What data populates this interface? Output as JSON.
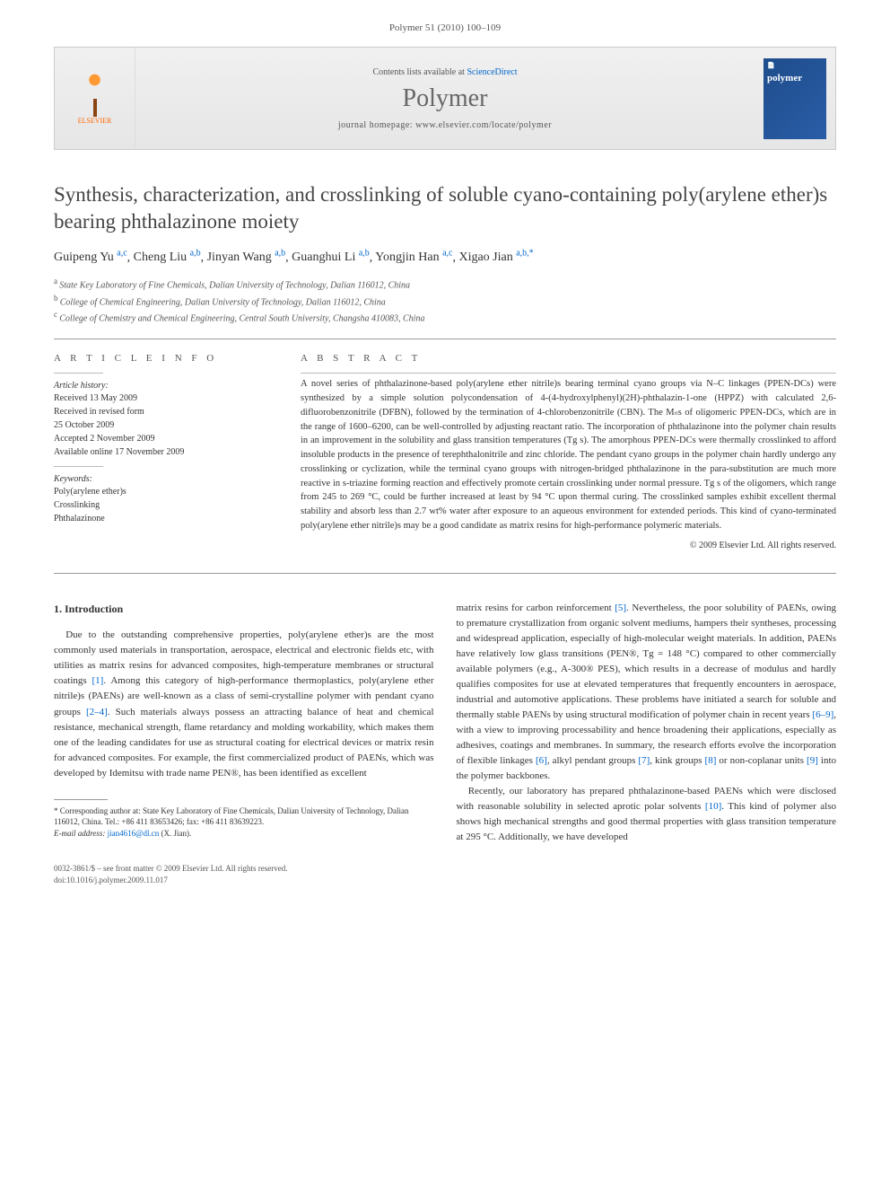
{
  "header": {
    "citation": "Polymer 51 (2010) 100–109"
  },
  "banner": {
    "publisher_name": "ELSEVIER",
    "contents_prefix": "Contents lists available at ",
    "contents_link": "ScienceDirect",
    "journal_name": "Polymer",
    "homepage_prefix": "journal homepage: ",
    "homepage_url": "www.elsevier.com/locate/polymer",
    "cover_badge": "📄",
    "cover_title": "polymer"
  },
  "article": {
    "title": "Synthesis, characterization, and crosslinking of soluble cyano-containing poly(arylene ether)s bearing phthalazinone moiety",
    "authors_html": "Guipeng Yu",
    "authors": [
      {
        "name": "Guipeng Yu",
        "sup": "a,c"
      },
      {
        "name": "Cheng Liu",
        "sup": "a,b"
      },
      {
        "name": "Jinyan Wang",
        "sup": "a,b"
      },
      {
        "name": "Guanghui Li",
        "sup": "a,b"
      },
      {
        "name": "Yongjin Han",
        "sup": "a,c"
      },
      {
        "name": "Xigao Jian",
        "sup": "a,b,*"
      }
    ],
    "affiliations": [
      {
        "sup": "a",
        "text": "State Key Laboratory of Fine Chemicals, Dalian University of Technology, Dalian 116012, China"
      },
      {
        "sup": "b",
        "text": "College of Chemical Engineering, Dalian University of Technology, Dalian 116012, China"
      },
      {
        "sup": "c",
        "text": "College of Chemistry and Chemical Engineering, Central South University, Changsha 410083, China"
      }
    ]
  },
  "info": {
    "heading": "A R T I C L E   I N F O",
    "history_label": "Article history:",
    "received": "Received 13 May 2009",
    "revised1": "Received in revised form",
    "revised2": "25 October 2009",
    "accepted": "Accepted 2 November 2009",
    "online": "Available online 17 November 2009",
    "keywords_label": "Keywords:",
    "kw1": "Poly(arylene ether)s",
    "kw2": "Crosslinking",
    "kw3": "Phthalazinone"
  },
  "abstract": {
    "heading": "A B S T R A C T",
    "text": "A novel series of phthalazinone-based poly(arylene ether nitrile)s bearing terminal cyano groups via N–C linkages (PPEN-DCs) were synthesized by a simple solution polycondensation of 4-(4-hydroxylphenyl)(2H)-phthalazin-1-one (HPPZ) with calculated 2,6-difluorobenzonitrile (DFBN), followed by the termination of 4-chlorobenzonitrile (CBN). The Mₙs of oligomeric PPEN-DCs, which are in the range of 1600–6200, can be well-controlled by adjusting reactant ratio. The incorporation of phthalazinone into the polymer chain results in an improvement in the solubility and glass transition temperatures (Tg s). The amorphous PPEN-DCs were thermally crosslinked to afford insoluble products in the presence of terephthalonitrile and zinc chloride. The pendant cyano groups in the polymer chain hardly undergo any crosslinking or cyclization, while the terminal cyano groups with nitrogen-bridged phthalazinone in the para-substitution are much more reactive in s-triazine forming reaction and effectively promote certain crosslinking under normal pressure. Tg s of the oligomers, which range from 245 to 269 °C, could be further increased at least by 94 °C upon thermal curing. The crosslinked samples exhibit excellent thermal stability and absorb less than 2.7 wt% water after exposure to an aqueous environment for extended periods. This kind of cyano-terminated poly(arylene ether nitrile)s may be a good candidate as matrix resins for high-performance polymeric materials.",
    "copyright": "© 2009 Elsevier Ltd. All rights reserved."
  },
  "body": {
    "section_heading": "1. Introduction",
    "col1_p1_a": "Due to the outstanding comprehensive properties, poly(arylene ether)s are the most commonly used materials in transportation, aerospace, electrical and electronic fields etc, with utilities as matrix resins for advanced composites, high-temperature membranes or structural coatings ",
    "col1_p1_b": ". Among this category of high-performance thermoplastics, poly(arylene ether nitrile)s (PAENs) are well-known as a class of semi-crystalline polymer with pendant cyano groups ",
    "col1_p1_c": ". Such materials always possess an attracting balance of heat and chemical resistance, mechanical strength, flame retardancy and molding workability, which makes them one of the leading candidates for use as structural coating for electrical devices or matrix resin for advanced composites. For example, the first commercialized product of PAENs, which was developed by Idemitsu with trade name PEN®, has been identified as excellent",
    "ref1": "[1]",
    "ref2_4": "[2–4]",
    "col2_p1_a": "matrix resins for carbon reinforcement ",
    "ref5": "[5]",
    "col2_p1_b": ". Nevertheless, the poor solubility of PAENs, owing to premature crystallization from organic solvent mediums, hampers their syntheses, processing and widespread application, especially of high-molecular weight materials. In addition, PAENs have relatively low glass transitions (PEN®, Tg = 148 °C) compared to other commercially available polymers (e.g., A-300® PES), which results in a decrease of modulus and hardly qualifies composites for use at elevated temperatures that frequently encounters in aerospace, industrial and automotive applications. These problems have initiated a search for soluble and thermally stable PAENs by using structural modification of polymer chain in recent years ",
    "ref6_9": "[6–9]",
    "col2_p1_c": ", with a view to improving processability and hence broadening their applications, especially as adhesives, coatings and membranes. In summary, the research efforts evolve the incorporation of flexible linkages ",
    "ref6": "[6]",
    "col2_p1_d": ", alkyl pendant groups ",
    "ref7": "[7]",
    "col2_p1_e": ", kink groups ",
    "ref8": "[8]",
    "col2_p1_f": " or non-coplanar units ",
    "ref9": "[9]",
    "col2_p1_g": " into the polymer backbones.",
    "col2_p2_a": "Recently, our laboratory has prepared phthalazinone-based PAENs which were disclosed with reasonable solubility in selected aprotic polar solvents ",
    "ref10": "[10]",
    "col2_p2_b": ". This kind of polymer also shows high mechanical strengths and good thermal properties with glass transition temperature at 295 °C. Additionally, we have developed"
  },
  "footnote": {
    "corr_label": "* Corresponding author at: State Key Laboratory of Fine Chemicals, Dalian University of Technology, Dalian 116012, China. Tel.: +86 411 83653426; fax: +86 411 83639223.",
    "email_label": "E-mail address: ",
    "email": "jian4616@dl.cn",
    "email_suffix": " (X. Jian)."
  },
  "footer": {
    "line1": "0032-3861/$ – see front matter © 2009 Elsevier Ltd. All rights reserved.",
    "line2": "doi:10.1016/j.polymer.2009.11.017"
  }
}
